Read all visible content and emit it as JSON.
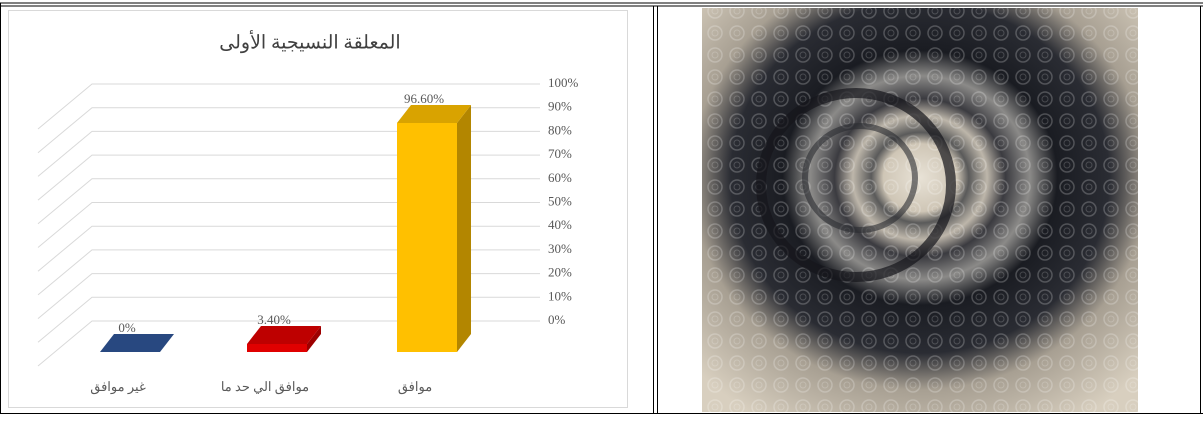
{
  "chart_data": {
    "type": "bar3d",
    "title": "المعلقة النسيجية الأولى",
    "categories": [
      "غير موافق",
      "موافق الي حد ما",
      "موافق"
    ],
    "values": [
      0,
      3.4,
      96.6
    ],
    "value_labels": [
      "0%",
      "3.40%",
      "96.60%"
    ],
    "colors": [
      "#2f5597",
      "#e00000",
      "#ffc000"
    ],
    "ylim": [
      0,
      100
    ],
    "yticks": [
      {
        "value": 0,
        "label": "0%"
      },
      {
        "value": 10,
        "label": "10%"
      },
      {
        "value": 20,
        "label": "20%"
      },
      {
        "value": 30,
        "label": "30%"
      },
      {
        "value": 40,
        "label": "40%"
      },
      {
        "value": 50,
        "label": "50%"
      },
      {
        "value": 60,
        "label": "60%"
      },
      {
        "value": 70,
        "label": "70%"
      },
      {
        "value": 80,
        "label": "80%"
      },
      {
        "value": 90,
        "label": "90%"
      },
      {
        "value": 100,
        "label": "100%"
      }
    ],
    "grid": true
  }
}
